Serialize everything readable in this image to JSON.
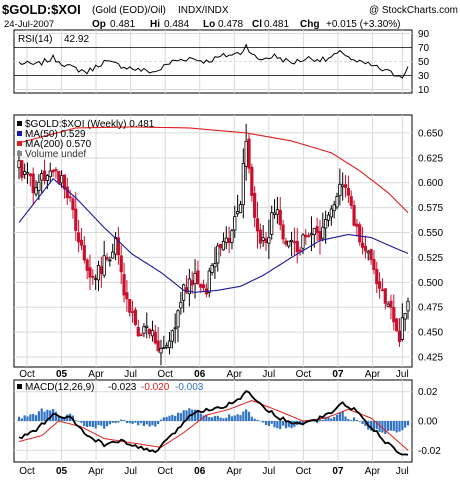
{
  "header": {
    "symbol": "$GOLD:$XOI",
    "description": "(Gold (EOD)/Oil)",
    "exchange": "INDX/INDX",
    "watermark": "@ StockCharts.com",
    "date": "24-Jul-2007",
    "open_label": "Op",
    "open": "0.481",
    "high_label": "Hi",
    "high": "0.484",
    "low_label": "Lo",
    "low": "0.478",
    "close_label": "Cl",
    "close": "0.481",
    "change_label": "Chg",
    "change": "+0.015 (+3.30%)"
  },
  "rsi_panel": {
    "label": "RSI(14)",
    "value": "42.92",
    "ticks": [
      "90",
      "70",
      "50",
      "30",
      "10"
    ]
  },
  "price_panel": {
    "legend": [
      {
        "text": "$GOLD:$XOI (Weekly) 0.481",
        "color": "#000000"
      },
      {
        "text": "MA(50) 0.529",
        "color": "#1a1a9c"
      },
      {
        "text": "MA(200) 0.570",
        "color": "#e0201c"
      },
      {
        "text": "Volume undef",
        "color": "#555555"
      }
    ],
    "ticks": [
      "0.650",
      "0.625",
      "0.600",
      "0.575",
      "0.550",
      "0.525",
      "0.500",
      "0.475",
      "0.450",
      "0.425"
    ]
  },
  "macd_panel": {
    "label_prefix": "MACD(12,26,9)",
    "macd": "-0.023",
    "signal": "-0.020",
    "histogram": "-0.003",
    "ticks": [
      "0.02",
      "0.00",
      "-0.02"
    ]
  },
  "x_axis": {
    "labels": [
      "Oct",
      "05",
      "Apr",
      "Jul",
      "Oct",
      "06",
      "Apr",
      "Jul",
      "Oct",
      "07",
      "Apr",
      "Jul"
    ],
    "bold": [
      "05",
      "06",
      "07"
    ]
  },
  "colors": {
    "up": "#000000",
    "down": "#c8102e",
    "ma50": "#1a1a9c",
    "ma200": "#e0201c",
    "macd": "#000000",
    "signal": "#e0201c",
    "histogram": "#2f72c4",
    "grid": "#d9d9d9",
    "rsi_fill_low": "#e8e8e8"
  },
  "chart_data": {
    "type": "line",
    "title": "$GOLD:$XOI (Gold (EOD)/Oil) INDX/INDX Weekly",
    "price_range": [
      0.415,
      0.668
    ],
    "rsi_range": [
      5,
      95
    ],
    "macd_range": [
      -0.028,
      0.028
    ],
    "price_anchors": [
      {
        "w": 0,
        "p": 0.615
      },
      {
        "w": 6,
        "p": 0.595
      },
      {
        "w": 10,
        "p": 0.612
      },
      {
        "w": 14,
        "p": 0.605
      },
      {
        "w": 18,
        "p": 0.585
      },
      {
        "w": 22,
        "p": 0.535
      },
      {
        "w": 26,
        "p": 0.505
      },
      {
        "w": 30,
        "p": 0.522
      },
      {
        "w": 34,
        "p": 0.54
      },
      {
        "w": 38,
        "p": 0.478
      },
      {
        "w": 42,
        "p": 0.45
      },
      {
        "w": 46,
        "p": 0.455
      },
      {
        "w": 50,
        "p": 0.425
      },
      {
        "w": 54,
        "p": 0.452
      },
      {
        "w": 58,
        "p": 0.495
      },
      {
        "w": 62,
        "p": 0.505
      },
      {
        "w": 66,
        "p": 0.495
      },
      {
        "w": 70,
        "p": 0.53
      },
      {
        "w": 74,
        "p": 0.545
      },
      {
        "w": 78,
        "p": 0.58
      },
      {
        "w": 80,
        "p": 0.645
      },
      {
        "w": 82,
        "p": 0.585
      },
      {
        "w": 86,
        "p": 0.535
      },
      {
        "w": 90,
        "p": 0.575
      },
      {
        "w": 94,
        "p": 0.54
      },
      {
        "w": 98,
        "p": 0.53
      },
      {
        "w": 102,
        "p": 0.555
      },
      {
        "w": 106,
        "p": 0.54
      },
      {
        "w": 110,
        "p": 0.57
      },
      {
        "w": 114,
        "p": 0.605
      },
      {
        "w": 116,
        "p": 0.585
      },
      {
        "w": 120,
        "p": 0.54
      },
      {
        "w": 124,
        "p": 0.52
      },
      {
        "w": 128,
        "p": 0.49
      },
      {
        "w": 132,
        "p": 0.465
      },
      {
        "w": 134,
        "p": 0.445
      },
      {
        "w": 136,
        "p": 0.47
      },
      {
        "w": 137,
        "p": 0.481
      }
    ],
    "ma50_anchors": [
      {
        "w": 0,
        "p": 0.56
      },
      {
        "w": 12,
        "p": 0.604
      },
      {
        "w": 20,
        "p": 0.585
      },
      {
        "w": 30,
        "p": 0.555
      },
      {
        "w": 40,
        "p": 0.528
      },
      {
        "w": 50,
        "p": 0.51
      },
      {
        "w": 58,
        "p": 0.492
      },
      {
        "w": 62,
        "p": 0.49
      },
      {
        "w": 70,
        "p": 0.492
      },
      {
        "w": 78,
        "p": 0.496
      },
      {
        "w": 86,
        "p": 0.507
      },
      {
        "w": 96,
        "p": 0.525
      },
      {
        "w": 106,
        "p": 0.542
      },
      {
        "w": 116,
        "p": 0.548
      },
      {
        "w": 124,
        "p": 0.545
      },
      {
        "w": 132,
        "p": 0.535
      },
      {
        "w": 137,
        "p": 0.529
      }
    ],
    "ma200_anchors": [
      {
        "w": 0,
        "p": 0.64
      },
      {
        "w": 20,
        "p": 0.655
      },
      {
        "w": 40,
        "p": 0.656
      },
      {
        "w": 60,
        "p": 0.655
      },
      {
        "w": 80,
        "p": 0.65
      },
      {
        "w": 96,
        "p": 0.642
      },
      {
        "w": 110,
        "p": 0.63
      },
      {
        "w": 120,
        "p": 0.612
      },
      {
        "w": 130,
        "p": 0.59
      },
      {
        "w": 137,
        "p": 0.57
      }
    ],
    "rsi_anchors": [
      {
        "w": 0,
        "p": 48
      },
      {
        "w": 6,
        "p": 45
      },
      {
        "w": 12,
        "p": 55
      },
      {
        "w": 18,
        "p": 42
      },
      {
        "w": 24,
        "p": 35
      },
      {
        "w": 30,
        "p": 50
      },
      {
        "w": 36,
        "p": 44
      },
      {
        "w": 42,
        "p": 38
      },
      {
        "w": 48,
        "p": 35
      },
      {
        "w": 54,
        "p": 50
      },
      {
        "w": 60,
        "p": 55
      },
      {
        "w": 66,
        "p": 50
      },
      {
        "w": 72,
        "p": 58
      },
      {
        "w": 78,
        "p": 62
      },
      {
        "w": 80,
        "p": 73
      },
      {
        "w": 84,
        "p": 52
      },
      {
        "w": 90,
        "p": 58
      },
      {
        "w": 96,
        "p": 48
      },
      {
        "w": 102,
        "p": 55
      },
      {
        "w": 108,
        "p": 52
      },
      {
        "w": 114,
        "p": 64
      },
      {
        "w": 118,
        "p": 50
      },
      {
        "w": 124,
        "p": 45
      },
      {
        "w": 128,
        "p": 38
      },
      {
        "w": 132,
        "p": 32
      },
      {
        "w": 135,
        "p": 30
      },
      {
        "w": 137,
        "p": 43
      }
    ],
    "macd_anchors": [
      {
        "w": 0,
        "p": -0.012
      },
      {
        "w": 6,
        "p": -0.006
      },
      {
        "w": 12,
        "p": 0.004
      },
      {
        "w": 18,
        "p": 0.002
      },
      {
        "w": 24,
        "p": -0.01
      },
      {
        "w": 30,
        "p": -0.016
      },
      {
        "w": 36,
        "p": -0.014
      },
      {
        "w": 42,
        "p": -0.018
      },
      {
        "w": 48,
        "p": -0.021
      },
      {
        "w": 54,
        "p": -0.01
      },
      {
        "w": 60,
        "p": 0.004
      },
      {
        "w": 66,
        "p": 0.008
      },
      {
        "w": 72,
        "p": 0.01
      },
      {
        "w": 78,
        "p": 0.016
      },
      {
        "w": 80,
        "p": 0.02
      },
      {
        "w": 86,
        "p": 0.01
      },
      {
        "w": 92,
        "p": 0.002
      },
      {
        "w": 98,
        "p": -0.002
      },
      {
        "w": 104,
        "p": 0.0
      },
      {
        "w": 110,
        "p": 0.006
      },
      {
        "w": 114,
        "p": 0.012
      },
      {
        "w": 118,
        "p": 0.008
      },
      {
        "w": 124,
        "p": -0.004
      },
      {
        "w": 130,
        "p": -0.016
      },
      {
        "w": 134,
        "p": -0.022
      },
      {
        "w": 137,
        "p": -0.023
      }
    ],
    "signal_anchors": [
      {
        "w": 0,
        "p": -0.014
      },
      {
        "w": 8,
        "p": -0.01
      },
      {
        "w": 14,
        "p": 0.0
      },
      {
        "w": 22,
        "p": -0.004
      },
      {
        "w": 30,
        "p": -0.012
      },
      {
        "w": 40,
        "p": -0.015
      },
      {
        "w": 50,
        "p": -0.018
      },
      {
        "w": 58,
        "p": -0.008
      },
      {
        "w": 66,
        "p": 0.004
      },
      {
        "w": 74,
        "p": 0.008
      },
      {
        "w": 82,
        "p": 0.014
      },
      {
        "w": 90,
        "p": 0.008
      },
      {
        "w": 100,
        "p": 0.0
      },
      {
        "w": 108,
        "p": 0.002
      },
      {
        "w": 116,
        "p": 0.008
      },
      {
        "w": 124,
        "p": 0.002
      },
      {
        "w": 130,
        "p": -0.008
      },
      {
        "w": 137,
        "p": -0.02
      }
    ]
  }
}
